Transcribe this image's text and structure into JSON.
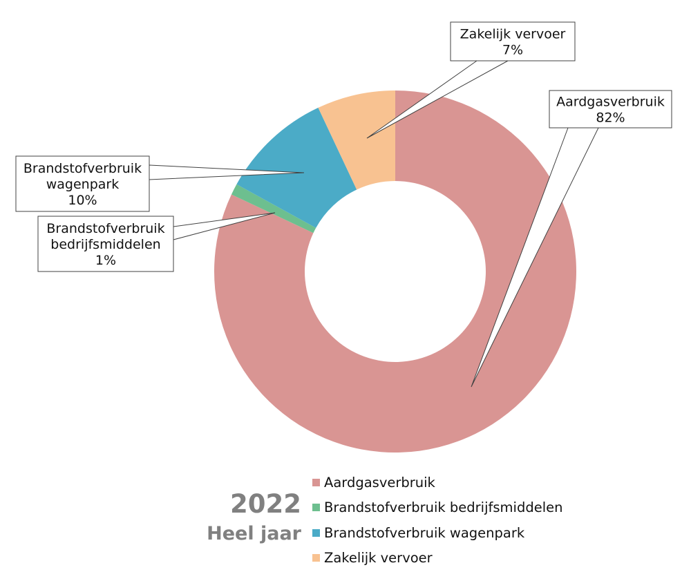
{
  "chart_data": {
    "type": "pie",
    "variant": "donut",
    "series": [
      {
        "name": "Aardgasverbruik",
        "value": 82,
        "label": "82%",
        "color": "#d99593"
      },
      {
        "name": "Brandstofverbruik bedrijfsmiddelen",
        "value": 1,
        "label": "1%",
        "color": "#6dbf8f"
      },
      {
        "name": "Brandstofverbruik wagenpark",
        "value": 10,
        "label": "10%",
        "color": "#4babc7"
      },
      {
        "name": "Zakelijk vervoer",
        "value": 7,
        "label": "7%",
        "color": "#f8c291"
      }
    ],
    "callouts": [
      {
        "lines": [
          "Aardgasverbruik",
          "82%"
        ]
      },
      {
        "lines": [
          "Brandstofverbruik",
          "bedrijfsmiddelen",
          "1%"
        ]
      },
      {
        "lines": [
          "Brandstofverbruik",
          "wagenpark",
          "10%"
        ]
      },
      {
        "lines": [
          "Zakelijk vervoer",
          "7%"
        ]
      }
    ],
    "legend_position": "bottom"
  },
  "period": {
    "year": "2022",
    "label": "Heel jaar"
  }
}
